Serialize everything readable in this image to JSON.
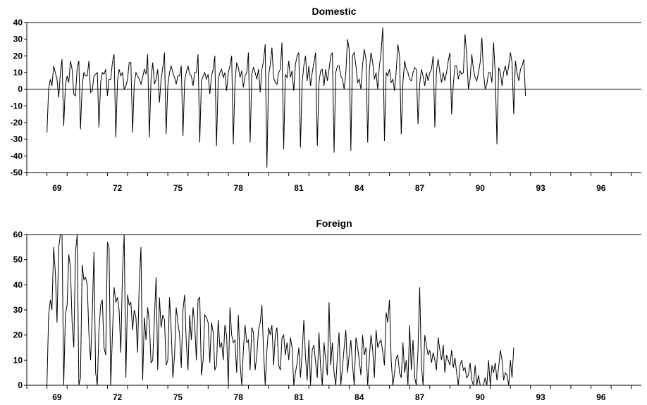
{
  "chart_data": [
    {
      "type": "line",
      "title": "Domestic",
      "xlabel": "",
      "ylabel": "",
      "xlim": [
        1968.0,
        1998.5
      ],
      "ylim": [
        -50,
        40
      ],
      "yticks": [
        40,
        30,
        20,
        10,
        0,
        -10,
        -20,
        -30,
        -40,
        -50
      ],
      "xticks": [
        "69",
        "72",
        "75",
        "78",
        "81",
        "84",
        "87",
        "90",
        "93",
        "96"
      ],
      "xtick_years": [
        1969.5,
        1972.5,
        1975.5,
        1978.5,
        1981.5,
        1984.5,
        1987.5,
        1990.5,
        1993.5,
        1996.5
      ],
      "zero_line": true,
      "grid": false,
      "x_start": 1969.0,
      "x_step": 0.0833333,
      "series": [
        {
          "values": [
            -26,
            0,
            6,
            2,
            14,
            10,
            6,
            -5,
            10,
            18,
            -22,
            2,
            8,
            4,
            17,
            12,
            -3,
            -4,
            13,
            17,
            -24,
            2,
            10,
            8,
            8,
            17,
            -2,
            -1,
            8,
            9,
            10,
            -23,
            4,
            10,
            9,
            12,
            -4,
            6,
            6,
            16,
            21,
            -29,
            5,
            12,
            8,
            10,
            0,
            2,
            6,
            16,
            16,
            -26,
            3,
            10,
            8,
            6,
            3,
            7,
            12,
            9,
            21,
            -29,
            6,
            16,
            3,
            6,
            12,
            -8,
            6,
            13,
            22,
            -27,
            2,
            10,
            14,
            10,
            7,
            3,
            8,
            8,
            14,
            -28,
            5,
            10,
            14,
            9,
            8,
            2,
            10,
            10,
            21,
            -32,
            5,
            8,
            10,
            6,
            9,
            -3,
            8,
            12,
            20,
            -34,
            6,
            10,
            12,
            7,
            10,
            -1,
            10,
            14,
            20,
            -33,
            4,
            16,
            13,
            7,
            11,
            1,
            8,
            10,
            22,
            -32,
            9,
            13,
            10,
            6,
            12,
            -2,
            12,
            17,
            27,
            -47,
            8,
            15,
            25,
            7,
            4,
            3,
            10,
            12,
            28,
            -36,
            9,
            7,
            17,
            7,
            11,
            -1,
            15,
            20,
            22,
            -35,
            4,
            14,
            20,
            5,
            14,
            2,
            10,
            16,
            22,
            -34,
            4,
            11,
            12,
            2,
            12,
            5,
            12,
            20,
            22,
            -38,
            10,
            14,
            14,
            8,
            6,
            0,
            10,
            30,
            24,
            -37,
            20,
            22,
            14,
            4,
            6,
            0,
            15,
            24,
            18,
            -32,
            11,
            22,
            16,
            6,
            10,
            0,
            14,
            22,
            37,
            -31,
            10,
            8,
            12,
            4,
            6,
            -1,
            11,
            27,
            20,
            -27,
            4,
            17,
            12,
            10,
            6,
            5,
            10,
            13,
            12,
            -21,
            3,
            12,
            8,
            2,
            10,
            5,
            10,
            12,
            20,
            -23,
            11,
            18,
            10,
            4,
            10,
            5,
            10,
            17,
            22,
            -15,
            3,
            14,
            14,
            6,
            11,
            9,
            10,
            33,
            20,
            0,
            6,
            21,
            12,
            7,
            5,
            10,
            16,
            31,
            10,
            0,
            3,
            10,
            10,
            4,
            28,
            9,
            -33,
            13,
            10,
            2,
            10,
            14,
            8,
            14,
            22,
            16,
            -15,
            17,
            10,
            5,
            12,
            14,
            18,
            -4
          ]
        }
      ]
    },
    {
      "type": "line",
      "title": "Foreign",
      "xlabel": "",
      "ylabel": "",
      "xlim": [
        1968.0,
        1998.5
      ],
      "ylim": [
        0,
        60
      ],
      "yticks": [
        60,
        50,
        40,
        30,
        20,
        10,
        0
      ],
      "xticks": [
        "69",
        "72",
        "75",
        "78",
        "81",
        "84",
        "87",
        "90",
        "93",
        "96"
      ],
      "xtick_years": [
        1969.5,
        1972.5,
        1975.5,
        1978.5,
        1981.5,
        1984.5,
        1987.5,
        1990.5,
        1993.5,
        1996.5
      ],
      "zero_line": false,
      "grid": false,
      "x_start": 1969.0,
      "x_step": 0.0833333,
      "series": [
        {
          "values": [
            0,
            28,
            34,
            30,
            55,
            45,
            25,
            55,
            60,
            60,
            0,
            28,
            32,
            52,
            47,
            25,
            15,
            53,
            60,
            0,
            3,
            48,
            42,
            43,
            40,
            20,
            10,
            28,
            53,
            5,
            0,
            22,
            32,
            34,
            15,
            12,
            57,
            55,
            0,
            20,
            39,
            33,
            35,
            30,
            13,
            45,
            60,
            3,
            36,
            32,
            33,
            22,
            30,
            27,
            13,
            41,
            55,
            2,
            27,
            18,
            31,
            25,
            9,
            10,
            27,
            43,
            6,
            35,
            23,
            28,
            26,
            8,
            10,
            35,
            22,
            3,
            12,
            31,
            25,
            20,
            7,
            30,
            36,
            17,
            6,
            28,
            18,
            31,
            24,
            10,
            34,
            35,
            4,
            10,
            28,
            27,
            25,
            9,
            25,
            21,
            6,
            8,
            26,
            15,
            17,
            10,
            24,
            20,
            0,
            31,
            20,
            17,
            18,
            5,
            28,
            9,
            0,
            14,
            24,
            17,
            18,
            6,
            23,
            21,
            6,
            12,
            22,
            25,
            32,
            14,
            0,
            14,
            23,
            20,
            24,
            8,
            20,
            23,
            8,
            6,
            19,
            20,
            12,
            17,
            10,
            19,
            15,
            0,
            5,
            9,
            15,
            3,
            13,
            26,
            11,
            2,
            18,
            0,
            14,
            16,
            9,
            3,
            21,
            7,
            0,
            17,
            10,
            4,
            33,
            8,
            17,
            5,
            0,
            12,
            21,
            0,
            7,
            15,
            22,
            5,
            12,
            18,
            8,
            0,
            19,
            15,
            10,
            4,
            20,
            12,
            15,
            0,
            11,
            20,
            14,
            3,
            22,
            15,
            17,
            18,
            13,
            8,
            29,
            25,
            34,
            10,
            0,
            5,
            11,
            12,
            5,
            3,
            17,
            5,
            10,
            0,
            24,
            6,
            18,
            3,
            0,
            14,
            39,
            8,
            0,
            20,
            16,
            12,
            14,
            9,
            13,
            10,
            6,
            19,
            14,
            10,
            16,
            5,
            12,
            10,
            8,
            14,
            7,
            11,
            5,
            0,
            8,
            10,
            6,
            7,
            3,
            4,
            9,
            2,
            0,
            8,
            0,
            4,
            0,
            0,
            0,
            3,
            0,
            10,
            0,
            8,
            5,
            9,
            2,
            7,
            14,
            10,
            2,
            5,
            4,
            0,
            10,
            3,
            15
          ]
        }
      ]
    }
  ]
}
